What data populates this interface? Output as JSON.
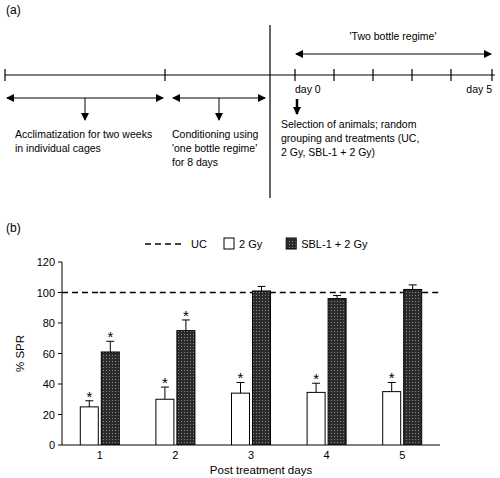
{
  "diagram": {
    "label": "(a)",
    "top_label": "'Two bottle regime'",
    "day_start": "day 0",
    "day_end": "day 5",
    "phases": [
      {
        "lines": [
          "Acclimatization for two weeks",
          "in individual cages"
        ]
      },
      {
        "lines": [
          "Conditioning using",
          "'one bottle regime'",
          "for 8 days"
        ]
      }
    ],
    "treatment": {
      "lines": [
        "Selection of animals; random",
        "grouping and treatments (UC,",
        "2 Gy, SBL-1 + 2 Gy)"
      ]
    }
  },
  "chart_data": {
    "type": "bar",
    "title": "(b)",
    "x_label": "Post treatment days",
    "y_label": "% SPR",
    "categories": [
      "1",
      "2",
      "3",
      "4",
      "5"
    ],
    "ylim": [
      0,
      120
    ],
    "yticks": [
      0,
      20,
      40,
      60,
      80,
      100,
      120
    ],
    "legend": "top",
    "grid": false,
    "series": [
      {
        "name": "UC",
        "type": "line",
        "line_style": "dashed",
        "color": "#000000",
        "values": [
          100,
          100,
          100,
          100,
          100
        ]
      },
      {
        "name": "2 Gy",
        "type": "bar",
        "color": "#ffffff",
        "values": [
          25,
          30,
          34,
          34.5,
          35
        ],
        "errors": [
          4,
          8,
          7,
          6,
          6
        ],
        "annotations": [
          "*",
          "*",
          "*",
          "*",
          "*"
        ]
      },
      {
        "name": "SBL-1 + 2 Gy",
        "type": "bar",
        "color": "#2b2b2b",
        "values": [
          61,
          75,
          101,
          96,
          102
        ],
        "errors": [
          7,
          7,
          3,
          2,
          3
        ],
        "annotations": [
          "*",
          "*",
          null,
          null,
          null
        ]
      }
    ]
  }
}
